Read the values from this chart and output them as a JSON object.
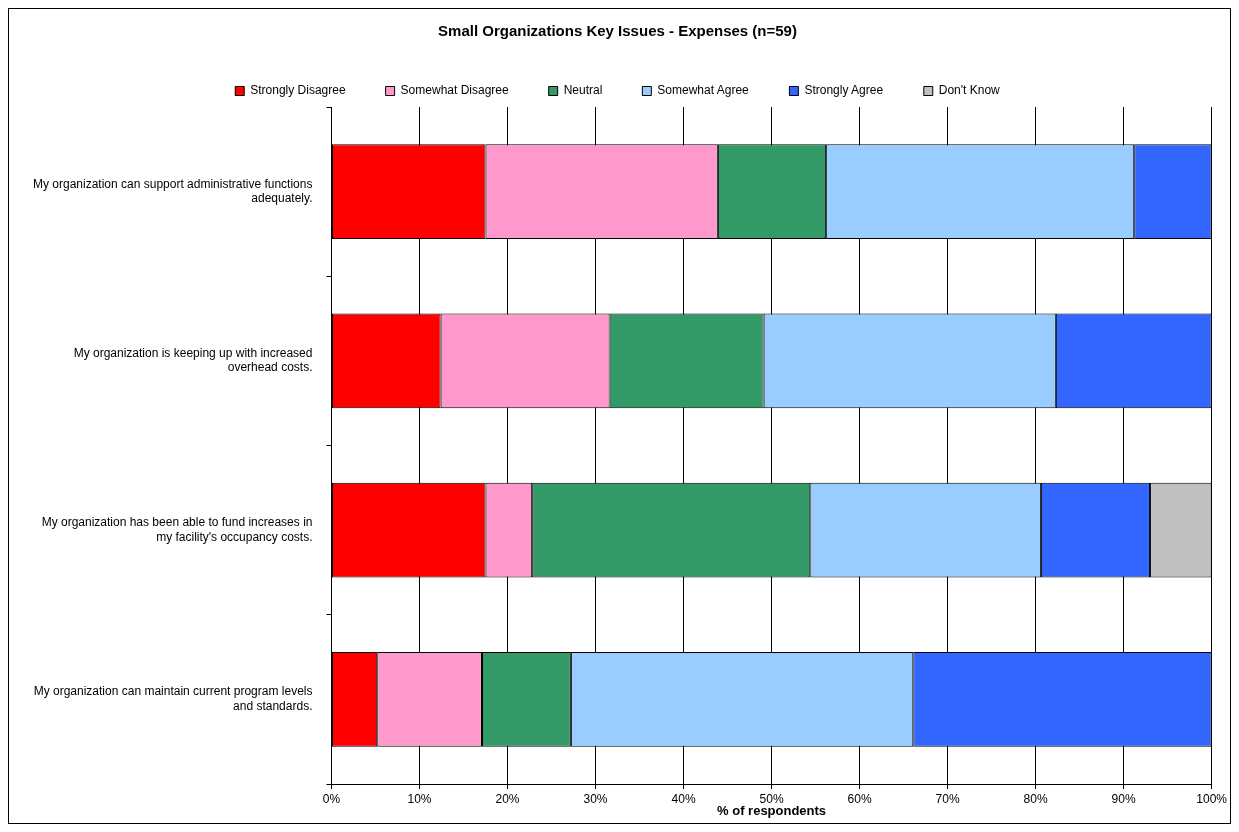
{
  "chart_data": {
    "type": "bar",
    "orientation": "horizontal",
    "stacked": true,
    "title": "Small Organizations Key Issues - Expenses (n=59)",
    "xlabel": "% of respondents",
    "categories": [
      "My organization can support administrative functions adequately.",
      "My organization is keeping up with increased overhead costs.",
      "My organization has been able to fund increases in my facility's occupancy costs.",
      "My organization can maintain current program levels and standards."
    ],
    "series": [
      {
        "name": "Strongly Disagree",
        "color": "#ff0000",
        "values": [
          17.5,
          12.4,
          17.5,
          5.2
        ]
      },
      {
        "name": "Somewhat Disagree",
        "color": "#ff99cc",
        "values": [
          26.4,
          19.2,
          5.3,
          11.9
        ]
      },
      {
        "name": "Neutral",
        "color": "#339966",
        "values": [
          12.3,
          17.5,
          31.6,
          10.1
        ]
      },
      {
        "name": "Somewhat Agree",
        "color": "#99ccff",
        "values": [
          35.0,
          33.2,
          26.2,
          38.9
        ]
      },
      {
        "name": "Strongly Agree",
        "color": "#3366ff",
        "values": [
          8.8,
          17.7,
          12.4,
          33.9
        ]
      },
      {
        "name": "Don't Know",
        "color": "#c0c0c0",
        "values": [
          0,
          0,
          7.0,
          0
        ]
      }
    ],
    "xlim": [
      0,
      100
    ],
    "xticks": [
      {
        "value": 0,
        "label": "0%"
      },
      {
        "value": 10,
        "label": "10%"
      },
      {
        "value": 20,
        "label": "20%"
      },
      {
        "value": 30,
        "label": "30%"
      },
      {
        "value": 40,
        "label": "40%"
      },
      {
        "value": 50,
        "label": "50%"
      },
      {
        "value": 60,
        "label": "60%"
      },
      {
        "value": 70,
        "label": "70%"
      },
      {
        "value": 80,
        "label": "80%"
      },
      {
        "value": 90,
        "label": "90%"
      },
      {
        "value": 100,
        "label": "100%"
      }
    ],
    "grid": "x",
    "legend": "top"
  }
}
